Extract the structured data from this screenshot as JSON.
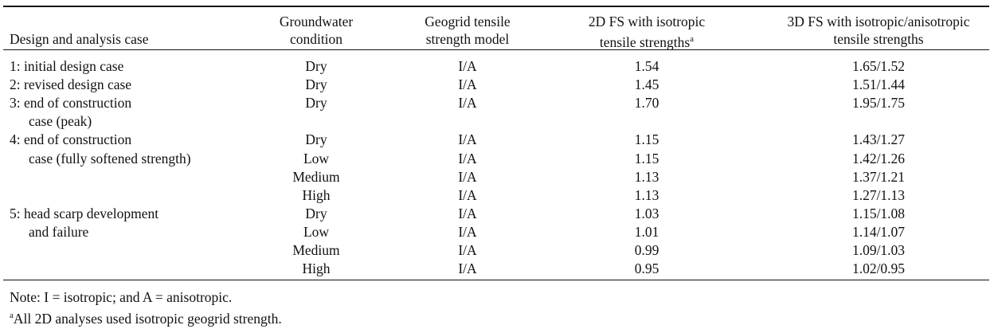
{
  "table": {
    "header": {
      "case": "Design and analysis case",
      "groundwater": [
        "Groundwater",
        "condition"
      ],
      "geogrid": [
        "Geogrid tensile",
        "strength model"
      ],
      "fs2d": [
        "2D FS with isotropic",
        "tensile strengths"
      ],
      "fs2d_mark": "a",
      "fs3d": [
        "3D FS with isotropic/anisotropic",
        "tensile strengths"
      ]
    },
    "rows": [
      {
        "case": "1: initial design case",
        "groundwater": "Dry",
        "geogrid": "I/A",
        "fs2d": "1.54",
        "fs3d": "1.65/1.52"
      },
      {
        "case": "2: revised design case",
        "groundwater": "Dry",
        "geogrid": "I/A",
        "fs2d": "1.45",
        "fs3d": "1.51/1.44"
      },
      {
        "case": "3: end of construction",
        "groundwater": "Dry",
        "geogrid": "I/A",
        "fs2d": "1.70",
        "fs3d": "1.95/1.75"
      },
      {
        "case_cont": "case (peak)"
      },
      {
        "case": "4: end of construction",
        "groundwater": "Dry",
        "geogrid": "I/A",
        "fs2d": "1.15",
        "fs3d": "1.43/1.27"
      },
      {
        "case_cont": "case (fully softened strength)",
        "groundwater": "Low",
        "geogrid": "I/A",
        "fs2d": "1.15",
        "fs3d": "1.42/1.26"
      },
      {
        "groundwater": "Medium",
        "geogrid": "I/A",
        "fs2d": "1.13",
        "fs3d": "1.37/1.21"
      },
      {
        "groundwater": "High",
        "geogrid": "I/A",
        "fs2d": "1.13",
        "fs3d": "1.27/1.13"
      },
      {
        "case": "5: head scarp development",
        "groundwater": "Dry",
        "geogrid": "I/A",
        "fs2d": "1.03",
        "fs3d": "1.15/1.08"
      },
      {
        "case_cont": "and failure",
        "groundwater": "Low",
        "geogrid": "I/A",
        "fs2d": "1.01",
        "fs3d": "1.14/1.07"
      },
      {
        "groundwater": "Medium",
        "geogrid": "I/A",
        "fs2d": "0.99",
        "fs3d": "1.09/1.03"
      },
      {
        "groundwater": "High",
        "geogrid": "I/A",
        "fs2d": "0.95",
        "fs3d": "1.02/0.95"
      }
    ],
    "note": "Note: I = isotropic; and A = anisotropic.",
    "footnote": {
      "mark": "a",
      "text": "All 2D analyses used isotropic geogrid strength."
    }
  }
}
